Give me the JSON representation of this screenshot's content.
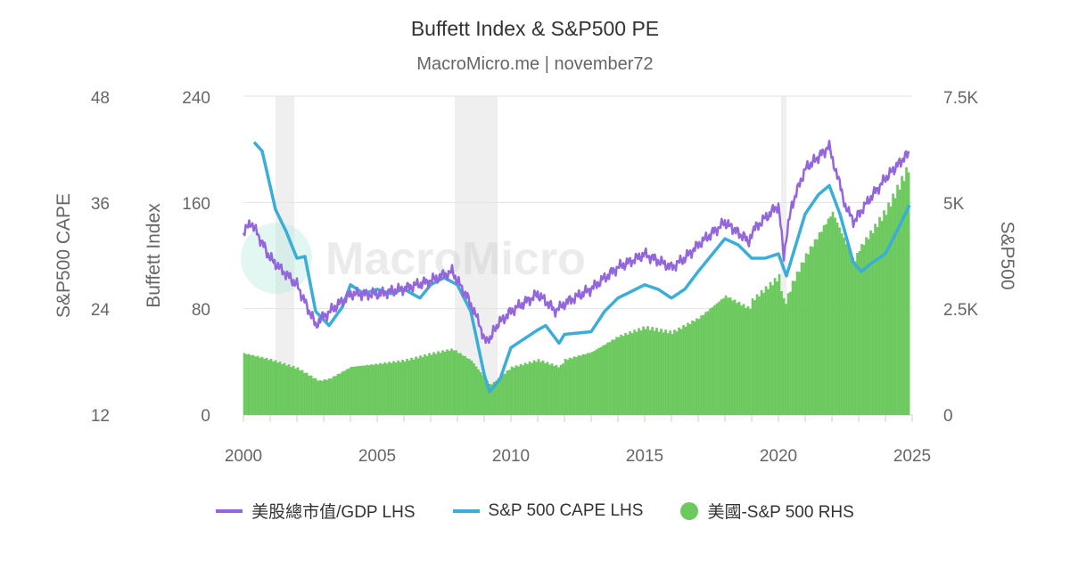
{
  "chart_data": {
    "type": "line",
    "title": "Buffett Index & S&P500 PE",
    "subtitle": "MacroMicro.me | november72",
    "watermark": "MacroMicro",
    "x_ticks": [
      "2000",
      "2005",
      "2010",
      "2015",
      "2020",
      "2025"
    ],
    "xlim": [
      2000,
      2025
    ],
    "y_left_outer": {
      "label": "S&P500 CAPE",
      "ylim": [
        12,
        48
      ],
      "ticks": [
        "12",
        "24",
        "36",
        "48"
      ]
    },
    "y_left_inner": {
      "label": "Buffett Index",
      "ylim": [
        0,
        240
      ],
      "ticks": [
        "0",
        "80",
        "160",
        "240"
      ]
    },
    "y_right": {
      "label": "S&P500",
      "ylim": [
        0,
        7500
      ],
      "ticks": [
        "0",
        "2.5K",
        "5K",
        "7.5K"
      ]
    },
    "grid": true,
    "legend_position": "bottom",
    "recession_shading": [
      [
        2001.2,
        2001.9
      ],
      [
        2007.9,
        2009.5
      ],
      [
        2020.1,
        2020.3
      ]
    ],
    "series": [
      {
        "name": "美股總市值/GDP LHS",
        "axis": "left_inner",
        "type": "line",
        "color": "#9466dc",
        "x": [
          2000,
          2000.3,
          2001,
          2002,
          2002.7,
          2003,
          2004,
          2005,
          2006,
          2007,
          2007.8,
          2008.5,
          2009.1,
          2009.5,
          2010,
          2011,
          2011.7,
          2012,
          2013,
          2014,
          2015,
          2016,
          2016.5,
          2017,
          2018,
          2018.9,
          2019,
          2020,
          2020.2,
          2020.5,
          2021,
          2021.9,
          2022.5,
          2022.8,
          2023,
          2023.5,
          2024,
          2024.9
        ],
        "values": [
          137,
          145,
          118,
          98,
          68,
          74,
          91,
          91,
          95,
          101,
          108,
          84,
          54,
          68,
          78,
          91,
          78,
          84,
          95,
          111,
          121,
          111,
          118,
          128,
          145,
          131,
          138,
          158,
          121,
          158,
          185,
          202,
          158,
          145,
          151,
          165,
          178,
          198
        ]
      },
      {
        "name": "S&P 500 CAPE LHS",
        "axis": "left_outer",
        "type": "line",
        "color": "#3aaed8",
        "x": [
          2000.4,
          2000.7,
          2001.2,
          2001.6,
          2002,
          2002.3,
          2002.7,
          2003.2,
          2003.7,
          2004,
          2004.5,
          2005,
          2005.5,
          2006,
          2006.6,
          2007,
          2007.5,
          2008,
          2008.5,
          2009,
          2009.2,
          2009.6,
          2010,
          2010.5,
          2011,
          2011.3,
          2011.8,
          2012,
          2013,
          2013.5,
          2014,
          2015,
          2015.5,
          2016,
          2016.5,
          2017,
          2018,
          2018.5,
          2019,
          2019.5,
          2020,
          2020.3,
          2020.6,
          2021,
          2021.5,
          2021.9,
          2022.3,
          2022.8,
          2023.1,
          2023.5,
          2024,
          2024.5,
          2024.9
        ],
        "values": [
          42.8,
          41.8,
          35.2,
          32.7,
          29.7,
          29.9,
          23.7,
          22.1,
          24.2,
          26.7,
          25.7,
          26.2,
          25.7,
          26.2,
          25.2,
          26.7,
          27.5,
          26.7,
          23.7,
          16.6,
          14.6,
          16.1,
          19.6,
          20.6,
          21.6,
          22.1,
          20.1,
          21.1,
          21.4,
          23.7,
          25.2,
          26.7,
          26.2,
          25.2,
          26.2,
          28.2,
          31.9,
          31.2,
          29.7,
          29.7,
          30.2,
          27.7,
          30.7,
          34.7,
          36.9,
          37.9,
          34.7,
          29.2,
          28.2,
          29.2,
          30.2,
          33.2,
          35.7
        ]
      },
      {
        "name": "美國-S&P 500 RHS",
        "axis": "right",
        "type": "bar",
        "color": "#6cc95e",
        "x": [
          2000,
          2001,
          2002,
          2002.8,
          2003.2,
          2004,
          2005,
          2006,
          2007,
          2007.8,
          2008.5,
          2009.2,
          2010,
          2011,
          2011.8,
          2012,
          2013,
          2014,
          2015,
          2016,
          2017,
          2018,
          2018.9,
          2019,
          2020,
          2020.2,
          2020.5,
          2021,
          2022,
          2022.8,
          2023,
          2024,
          2024.9
        ],
        "values": [
          1450,
          1300,
          1100,
          800,
          850,
          1130,
          1200,
          1280,
          1440,
          1550,
          1280,
          700,
          1120,
          1290,
          1130,
          1300,
          1480,
          1850,
          2060,
          1940,
          2280,
          2800,
          2500,
          2700,
          3250,
          2580,
          3100,
          3750,
          4770,
          3600,
          3900,
          4800,
          5900
        ]
      }
    ]
  }
}
